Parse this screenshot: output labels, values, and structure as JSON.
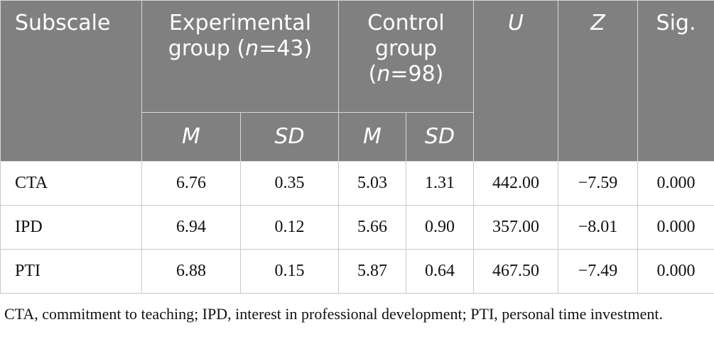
{
  "header": {
    "subscale": "Subscale",
    "experimental_label": "Experimental group (",
    "experimental_n_symbol": "n",
    "experimental_n_value": "=43)",
    "control_label": "Control group (",
    "control_n_symbol": "n",
    "control_n_value": "=98)",
    "u": "U",
    "z": "Z",
    "sig": "Sig.",
    "m": "M",
    "sd": "SD"
  },
  "rows": [
    {
      "subscale": "CTA",
      "exp_m": "6.76",
      "exp_sd": "0.35",
      "ctl_m": "5.03",
      "ctl_sd": "1.31",
      "u": "442.00",
      "z": "−7.59",
      "sig": "0.000"
    },
    {
      "subscale": "IPD",
      "exp_m": "6.94",
      "exp_sd": "0.12",
      "ctl_m": "5.66",
      "ctl_sd": "0.90",
      "u": "357.00",
      "z": "−8.01",
      "sig": "0.000"
    },
    {
      "subscale": "PTI",
      "exp_m": "6.88",
      "exp_sd": "0.15",
      "ctl_m": "5.87",
      "ctl_sd": "0.64",
      "u": "467.50",
      "z": "−7.49",
      "sig": "0.000"
    }
  ],
  "footnote": "CTA, commitment to teaching; IPD, interest in professional development; PTI, personal time investment.",
  "colors": {
    "header_bg": "#808080",
    "header_text": "#ffffff",
    "border": "#c9c9c9"
  }
}
